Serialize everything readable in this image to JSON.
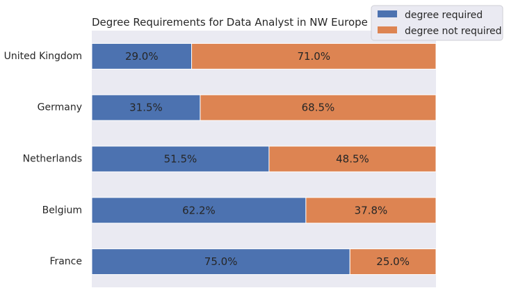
{
  "chart_data": {
    "type": "bar",
    "orientation": "horizontal",
    "stacked": true,
    "title": "Degree Requirements for Data Analyst in NW Europe",
    "xlabel": "",
    "ylabel": "",
    "categories": [
      "United Kingdom",
      "Germany",
      "Netherlands",
      "Belgium",
      "France"
    ],
    "series": [
      {
        "name": "degree required",
        "color": "#4c72b0",
        "values": [
          29.0,
          31.5,
          51.5,
          62.2,
          75.0
        ],
        "labels": [
          "29.0%",
          "31.5%",
          "51.5%",
          "62.2%",
          "75.0%"
        ]
      },
      {
        "name": "degree not required",
        "color": "#dd8452",
        "values": [
          71.0,
          68.5,
          48.5,
          37.8,
          25.0
        ],
        "labels": [
          "71.0%",
          "68.5%",
          "48.5%",
          "37.8%",
          "25.0%"
        ]
      }
    ],
    "xlim": [
      0,
      100
    ],
    "x_axis_visible": false,
    "grid": false,
    "legend": "top-right",
    "background": "#eaeaf2"
  }
}
